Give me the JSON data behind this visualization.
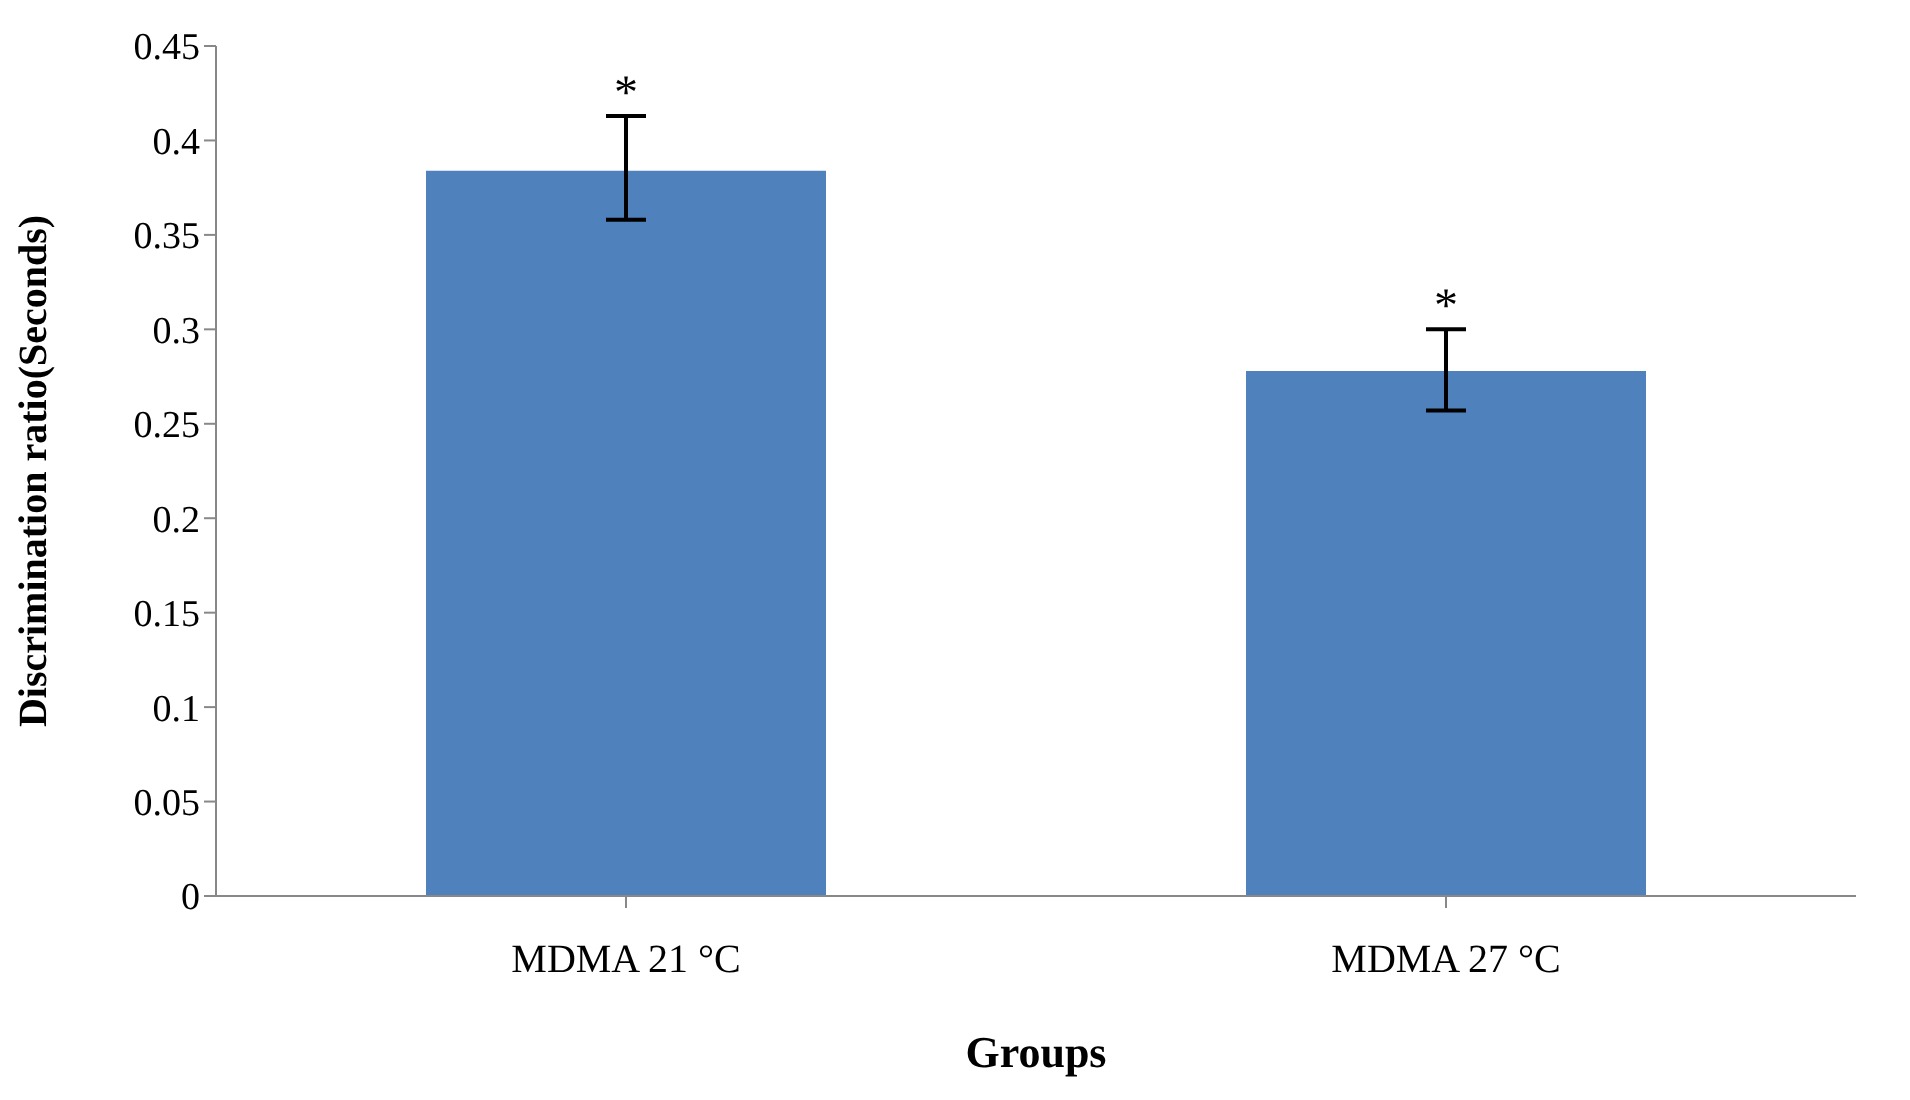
{
  "chart_data": {
    "type": "bar",
    "xlabel": "Groups",
    "ylabel": "Discrimination ratio(Seconds)",
    "categories": [
      "MDMA 21 °C",
      "MDMA 27 °C"
    ],
    "values": [
      0.384,
      0.278
    ],
    "errors": [
      [
        0.358,
        0.413
      ],
      [
        0.257,
        0.3
      ]
    ],
    "color": "#4f81bd",
    "ylim": [
      0,
      0.45
    ],
    "yticks": [
      0,
      0.05,
      0.1,
      0.15,
      0.2,
      0.25,
      0.3,
      0.35,
      0.4,
      0.45
    ],
    "grid": false,
    "legend": false,
    "annotations": [
      {
        "text": "*",
        "x": "MDMA 21 °C",
        "y": 0.413
      },
      {
        "text": "*",
        "x": "MDMA 27 °C",
        "y": 0.3
      }
    ]
  }
}
